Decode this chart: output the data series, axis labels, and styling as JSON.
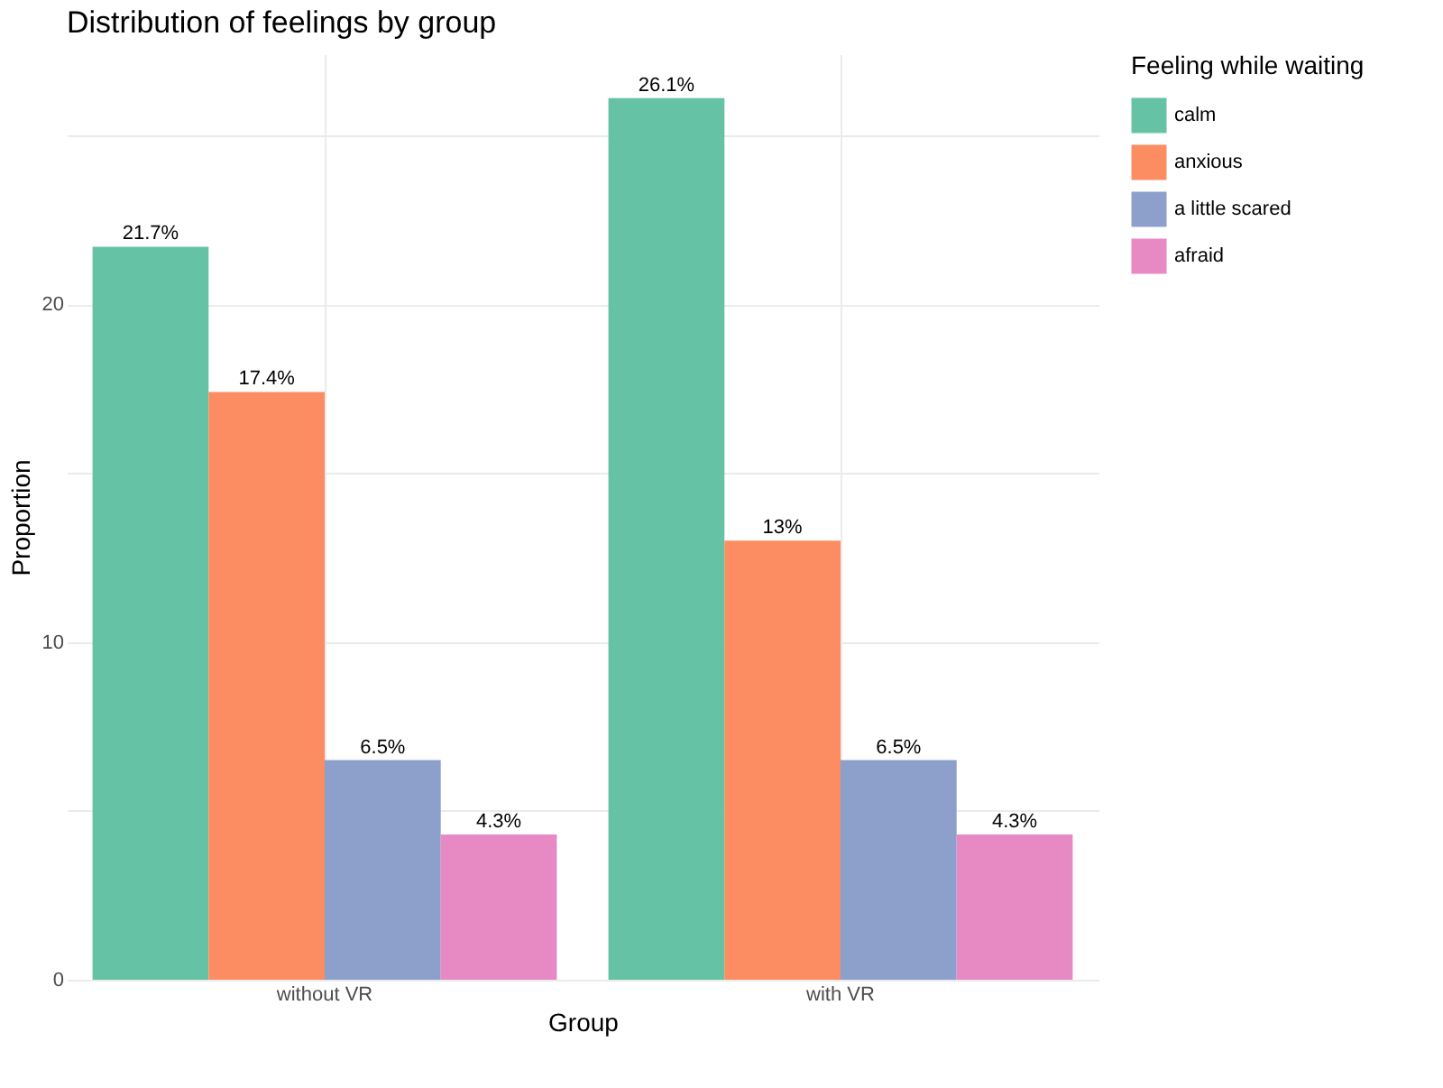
{
  "chart_data": {
    "type": "bar",
    "title": "Distribution of feelings by group",
    "xlabel": "Group",
    "ylabel": "Proportion",
    "legend_title": "Feeling while waiting",
    "categories": [
      "without VR",
      "with VR"
    ],
    "series": [
      {
        "name": "calm",
        "color": "#66c2a5",
        "values": [
          21.7,
          26.1
        ],
        "value_labels": [
          "21.7%",
          "26.1%"
        ]
      },
      {
        "name": "anxious",
        "color": "#fc8d62",
        "values": [
          17.4,
          13
        ],
        "value_labels": [
          "17.4%",
          "13%"
        ]
      },
      {
        "name": "a little scared",
        "color": "#8da0cb",
        "values": [
          6.5,
          6.5
        ],
        "value_labels": [
          "6.5%",
          "6.5%"
        ]
      },
      {
        "name": "afraid",
        "color": "#e78ac3",
        "values": [
          4.3,
          4.3
        ],
        "value_labels": [
          "4.3%",
          "4.3%"
        ]
      }
    ],
    "ylim": [
      0,
      27.4
    ],
    "yticks": [
      0,
      {
        "value": 5,
        "label": null
      },
      10,
      {
        "value": 15,
        "label": null
      },
      20,
      {
        "value": 25,
        "label": null
      }
    ],
    "grid": true,
    "legend": "right"
  }
}
